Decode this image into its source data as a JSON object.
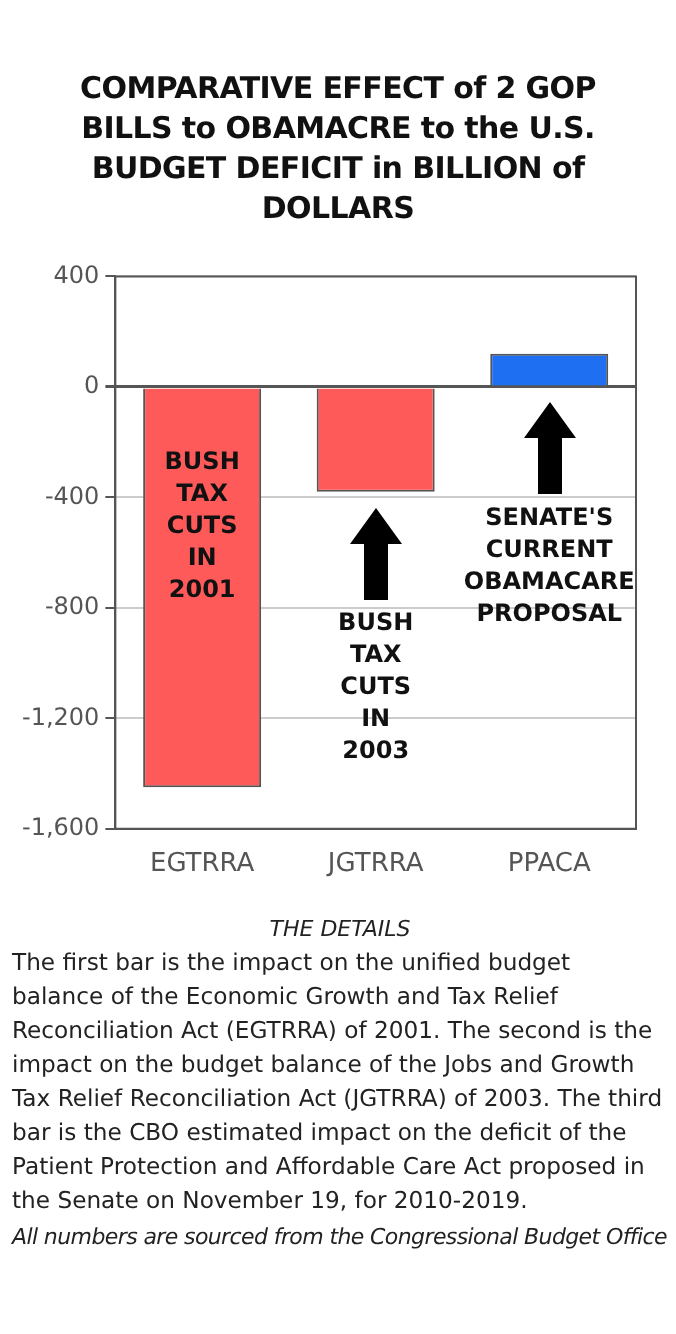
{
  "chart_data": {
    "type": "bar",
    "title": "COMPARATIVE EFFECT of 2 GOP BILLS to OBAMACRE to the U.S. BUDGET DEFICIT in BILLION of DOLLARS",
    "categories": [
      "EGTRRA",
      "JGTRRA",
      "PPACA"
    ],
    "values": [
      -1450,
      -380,
      120
    ],
    "colors": [
      "#ff5a5a",
      "#ff5a5a",
      "#1f6ff2"
    ],
    "ylim": [
      -1600,
      400
    ],
    "yticks": [
      {
        "value": -1600,
        "label": "-1,600"
      },
      {
        "value": -1200,
        "label": "-1,200"
      },
      -800,
      -400,
      0,
      400
    ],
    "grid": "y",
    "legend": false,
    "annotations": [
      "BUSH TAX CUTS IN 2001",
      "BUSH TAX CUTS IN 2003",
      "SENATE'S CURRENT OBAMACARE PROPOSAL",
      "THE DETAILS",
      "The first bar is the impact on the unified budget balance of the Economic Growth and Tax Relief Reconciliation Act (EGTRRA) of 2001. The second is the impact on the budget balance of the Jobs and Growth Tax Relief Reconciliation Act (JGTRRA) of 2003. The third bar is the CBO estimated impact on the deficit of the Patient Protection and Affordable Care Act proposed in the Senate on November 19, for 2010-2019.",
      "All numbers are sourced from the Congressional Budget Office"
    ]
  }
}
